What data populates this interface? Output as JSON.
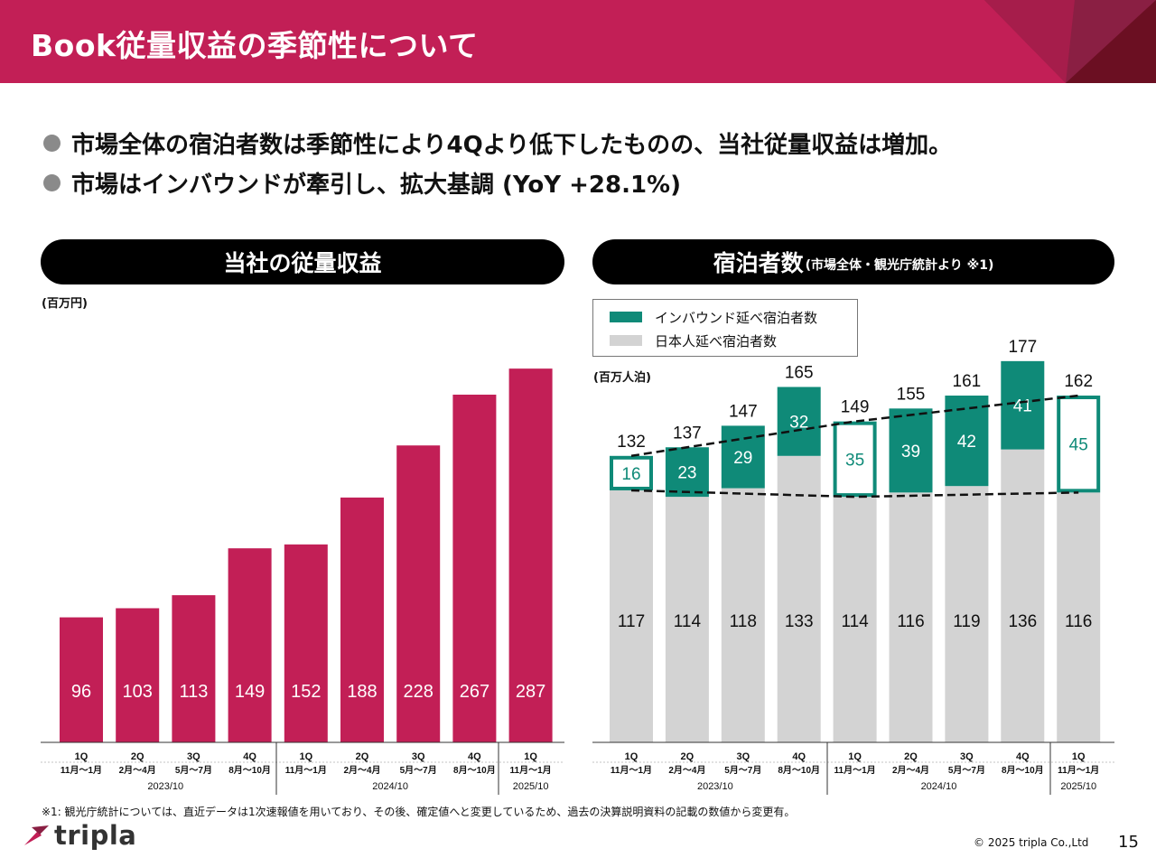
{
  "header": {
    "title": "Book従量収益の季節性について"
  },
  "colors": {
    "brand": "#c21f56",
    "inbound": "#0f8a78",
    "domestic": "#d3d3d3"
  },
  "bullets": [
    "市場全体の宿泊者数は季節性により4Qより低下したものの、当社従量収益は増加。",
    "市場はインバウンドが牽引し、拡大基調 (YoY +28.1%)"
  ],
  "left_panel": {
    "title": "当社の従量収益",
    "unit": "(百万円)"
  },
  "right_panel": {
    "title": "宿泊者数",
    "title_sub": "(市場全体・観光庁統計より ※1)",
    "unit": "(百万人泊)",
    "legend": {
      "inbound": "インバウンド延べ宿泊者数",
      "domestic": "日本人延べ宿泊者数"
    }
  },
  "chart_data": [
    {
      "type": "bar",
      "title": "当社の従量収益",
      "ylabel": "(百万円)",
      "categories": [
        "1Q",
        "2Q",
        "3Q",
        "4Q",
        "1Q",
        "2Q",
        "3Q",
        "4Q",
        "1Q"
      ],
      "category_subs": [
        "11月〜1月",
        "2月〜4月",
        "5月〜7月",
        "8月〜10月",
        "11月〜1月",
        "2月〜4月",
        "5月〜7月",
        "8月〜10月",
        "11月〜1月"
      ],
      "groups": [
        {
          "label": "2023/10",
          "start": 0,
          "end": 3
        },
        {
          "label": "2024/10",
          "start": 4,
          "end": 7
        },
        {
          "label": "2025/10",
          "start": 8,
          "end": 8
        }
      ],
      "values": [
        96,
        103,
        113,
        149,
        152,
        188,
        228,
        267,
        287
      ],
      "ylim": [
        0,
        300
      ],
      "grid": false
    },
    {
      "type": "bar",
      "stacked": true,
      "title": "宿泊者数",
      "ylabel": "(百万人泊)",
      "categories": [
        "1Q",
        "2Q",
        "3Q",
        "4Q",
        "1Q",
        "2Q",
        "3Q",
        "4Q",
        "1Q"
      ],
      "category_subs": [
        "11月〜1月",
        "2月〜4月",
        "5月〜7月",
        "8月〜10月",
        "11月〜1月",
        "2月〜4月",
        "5月〜7月",
        "8月〜10月",
        "11月〜1月"
      ],
      "groups": [
        {
          "label": "2023/10",
          "start": 0,
          "end": 3
        },
        {
          "label": "2024/10",
          "start": 4,
          "end": 7
        },
        {
          "label": "2025/10",
          "start": 8,
          "end": 8
        }
      ],
      "series": [
        {
          "name": "日本人延べ宿泊者数",
          "values": [
            117,
            114,
            118,
            133,
            114,
            116,
            119,
            136,
            116
          ]
        },
        {
          "name": "インバウンド延べ宿泊者数",
          "values": [
            16,
            23,
            29,
            32,
            35,
            39,
            42,
            41,
            45
          ]
        }
      ],
      "totals": [
        132,
        137,
        147,
        165,
        149,
        155,
        161,
        177,
        162
      ],
      "highlighted": [
        0,
        4,
        8
      ],
      "ylim": [
        0,
        180
      ],
      "legend": "top-left"
    }
  ],
  "footnote": "※1: 観光庁統計については、直近データは1次速報値を用いており、その後、確定値へと変更しているため、過去の決算説明資料の記載の数値から変更有。",
  "footer": {
    "logo": "tripla",
    "copyright": "© 2025 tripla Co.,Ltd",
    "page": "15"
  }
}
